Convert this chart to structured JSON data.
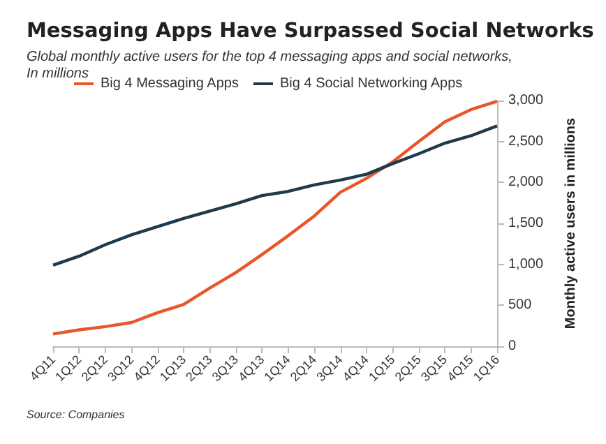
{
  "chart_data": {
    "type": "line",
    "title": "Messaging Apps Have Surpassed Social Networks",
    "subtitle": "Global monthly active users for the top 4 messaging apps and social networks,\nIn millions",
    "ylabel": "Monthly active users in millions",
    "categories": [
      "4Q11",
      "1Q12",
      "2Q12",
      "3Q12",
      "4Q12",
      "1Q13",
      "2Q13",
      "3Q13",
      "4Q13",
      "1Q14",
      "2Q14",
      "3Q14",
      "4Q14",
      "1Q15",
      "2Q15",
      "3Q15",
      "4Q15",
      "1Q16"
    ],
    "series": [
      {
        "name": "Big 4 Messaging Apps",
        "color": "#e8562a",
        "values": [
          150,
          200,
          240,
          290,
          410,
          510,
          710,
          900,
          1120,
          1350,
          1590,
          1880,
          2050,
          2250,
          2500,
          2740,
          2890,
          2990
        ]
      },
      {
        "name": "Big 4 Social Networking Apps",
        "color": "#1f3a4d",
        "values": [
          990,
          1100,
          1240,
          1360,
          1460,
          1560,
          1650,
          1740,
          1840,
          1890,
          1970,
          2030,
          2100,
          2230,
          2350,
          2480,
          2570,
          2690
        ]
      }
    ],
    "ylim": [
      0,
      3000
    ],
    "yticks": [
      0,
      {
        "value": 500,
        "label": "500"
      },
      {
        "value": 1000,
        "label": "1,000"
      },
      {
        "value": 1500,
        "label": "1,500"
      },
      {
        "value": 2000,
        "label": "2,000"
      },
      {
        "value": 2500,
        "label": "2,500"
      },
      {
        "value": 3000,
        "label": "3,000"
      }
    ],
    "grid": false,
    "legend": "top",
    "marker": "none",
    "line_style": "solid",
    "annotations": [
      "Source: Companies"
    ]
  }
}
